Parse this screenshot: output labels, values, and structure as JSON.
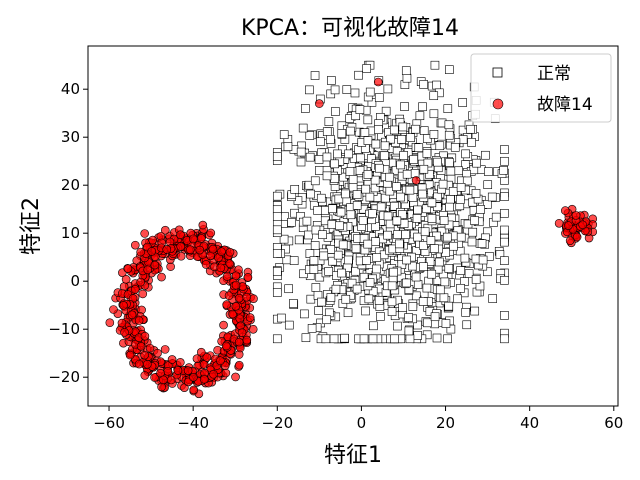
{
  "chart_data": {
    "type": "scatter",
    "title": "KPCA：可视化故障14",
    "xlabel": "特征1",
    "ylabel": "特征2",
    "xlim": [
      -65,
      61
    ],
    "ylim": [
      -26,
      49
    ],
    "xticks": [
      -60,
      -40,
      -20,
      0,
      20,
      40,
      60
    ],
    "yticks": [
      -20,
      -10,
      0,
      10,
      20,
      30,
      40
    ],
    "grid": false,
    "legend_position": "top-right",
    "series": [
      {
        "name": "正常",
        "marker": "square",
        "facecolor": "#ffffff",
        "edgecolor": "#000000",
        "clusters": [
          {
            "shape": "blob",
            "center": [
              7,
              13
            ],
            "x_range": [
              -20,
              34
            ],
            "y_range": [
              -12,
              45
            ],
            "approx_count": 1400
          }
        ]
      },
      {
        "name": "故障14",
        "marker": "circle",
        "facecolor": "#ff0000",
        "edgecolor": "#000000",
        "alpha": 0.7,
        "clusters": [
          {
            "shape": "ring",
            "center": [
              -42,
              -6
            ],
            "x_range": [
              -60,
              -27
            ],
            "y_range": [
              -22,
              12
            ],
            "approx_count": 600
          },
          {
            "shape": "blob",
            "center": [
              51,
              11.5
            ],
            "x_range": [
              47,
              55
            ],
            "y_range": [
              8,
              15
            ],
            "approx_count": 60
          }
        ],
        "outliers": [
          [
            4,
            41.5
          ],
          [
            -10,
            37
          ],
          [
            13,
            21
          ]
        ]
      }
    ]
  }
}
